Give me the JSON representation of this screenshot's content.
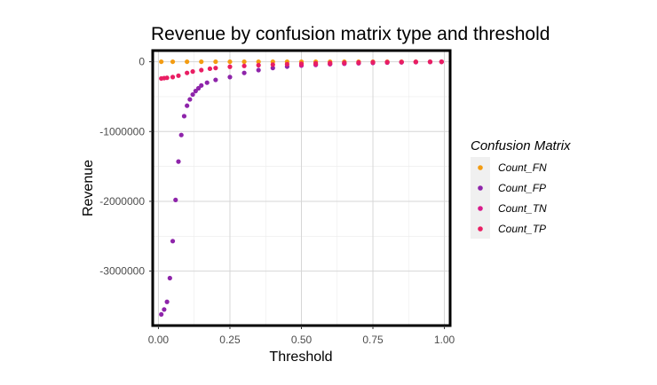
{
  "chart_data": {
    "type": "scatter",
    "title": "Revenue by confusion matrix type and threshold",
    "xlabel": "Threshold",
    "ylabel": "Revenue",
    "xlim": [
      -0.02,
      1.02
    ],
    "ylim": [
      -3780000,
      160000
    ],
    "x_ticks": [
      0,
      0.25,
      0.5,
      0.75,
      1
    ],
    "x_tick_labels": [
      "0.00",
      "0.25",
      "0.50",
      "0.75",
      "1.00"
    ],
    "y_ticks": [
      0,
      -1000000,
      -2000000,
      -3000000
    ],
    "y_tick_labels": [
      "0",
      "-1000000",
      "-2000000",
      "-3000000"
    ],
    "grid": true,
    "legend": {
      "title": "Confusion Matrix",
      "position": "right"
    },
    "series": [
      {
        "name": "Count_FN",
        "color": "#f39c12",
        "x": [
          0.01,
          0.05,
          0.1,
          0.15,
          0.2,
          0.25,
          0.3,
          0.35,
          0.4,
          0.45,
          0.5,
          0.55,
          0.6,
          0.65,
          0.7,
          0.75,
          0.8,
          0.85,
          0.9,
          0.95,
          0.99
        ],
        "y": [
          0,
          0,
          0,
          0,
          0,
          0,
          0,
          0,
          0,
          0,
          0,
          0,
          0,
          0,
          0,
          0,
          0,
          0,
          0,
          0,
          0
        ]
      },
      {
        "name": "Count_FP",
        "color": "#8e24aa",
        "x": [
          0.01,
          0.02,
          0.03,
          0.04,
          0.05,
          0.06,
          0.07,
          0.08,
          0.09,
          0.1,
          0.11,
          0.12,
          0.13,
          0.14,
          0.15,
          0.17,
          0.2,
          0.25,
          0.3,
          0.35,
          0.4,
          0.45,
          0.5,
          0.55,
          0.6,
          0.65,
          0.7,
          0.75,
          0.8,
          0.85,
          0.9,
          0.95,
          0.99
        ],
        "y": [
          -3620000,
          -3550000,
          -3440000,
          -3100000,
          -2570000,
          -1980000,
          -1430000,
          -1050000,
          -780000,
          -630000,
          -540000,
          -470000,
          -420000,
          -380000,
          -340000,
          -300000,
          -260000,
          -220000,
          -160000,
          -120000,
          -90000,
          -70000,
          -55000,
          -45000,
          -35000,
          -28000,
          -22000,
          -17000,
          -12000,
          -8000,
          -5000,
          -3000,
          -1000
        ]
      },
      {
        "name": "Count_TN",
        "color": "#d81b8c",
        "x": [
          0.5,
          0.55,
          0.6,
          0.65,
          0.7,
          0.75,
          0.8,
          0.85,
          0.9,
          0.95,
          0.99
        ],
        "y": [
          -50000,
          -40000,
          -32000,
          -25000,
          -19000,
          -14000,
          -10000,
          -7000,
          -4000,
          -2000,
          -500
        ]
      },
      {
        "name": "Count_TP",
        "color": "#e91e63",
        "x": [
          0.01,
          0.02,
          0.03,
          0.05,
          0.07,
          0.1,
          0.12,
          0.15,
          0.18,
          0.2,
          0.25,
          0.3,
          0.35,
          0.4,
          0.45,
          0.5,
          0.55,
          0.6,
          0.65,
          0.7,
          0.75,
          0.8,
          0.85,
          0.9,
          0.95,
          0.99
        ],
        "y": [
          -240000,
          -235000,
          -230000,
          -220000,
          -200000,
          -160000,
          -140000,
          -120000,
          -100000,
          -90000,
          -72000,
          -60000,
          -50000,
          -42000,
          -35000,
          -28000,
          -23000,
          -18000,
          -14000,
          -10000,
          -7000,
          -5000,
          -3000,
          -2000,
          -1000,
          -300
        ]
      }
    ]
  }
}
